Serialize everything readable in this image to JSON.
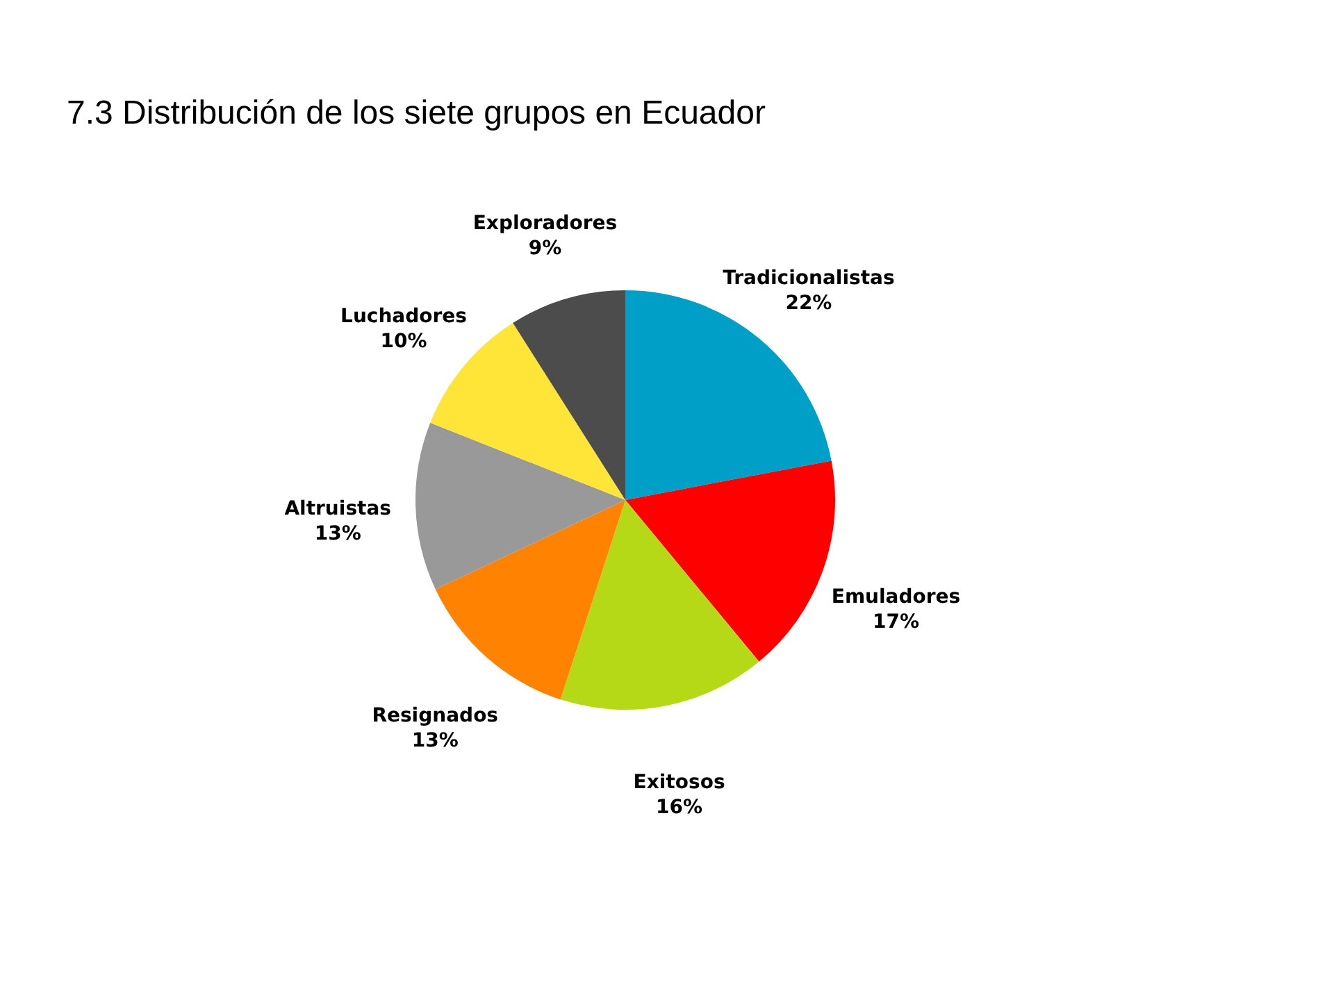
{
  "chart_data": {
    "type": "pie",
    "title": "7.3 Distribución de los siete grupos en Ecuador",
    "categories": [
      "Tradicionalistas",
      "Emuladores",
      "Exitosos",
      "Resignados",
      "Altruistas",
      "Luchadores",
      "Exploradores"
    ],
    "values": [
      22,
      17,
      16,
      13,
      13,
      10,
      9
    ],
    "colors": [
      "#009fc7",
      "#ff0000",
      "#b5d916",
      "#ff8300",
      "#999999",
      "#fee538",
      "#4c4c4c"
    ],
    "value_labels": [
      "22%",
      "17%",
      "16%",
      "13%",
      "13%",
      "10%",
      "9%"
    ]
  }
}
